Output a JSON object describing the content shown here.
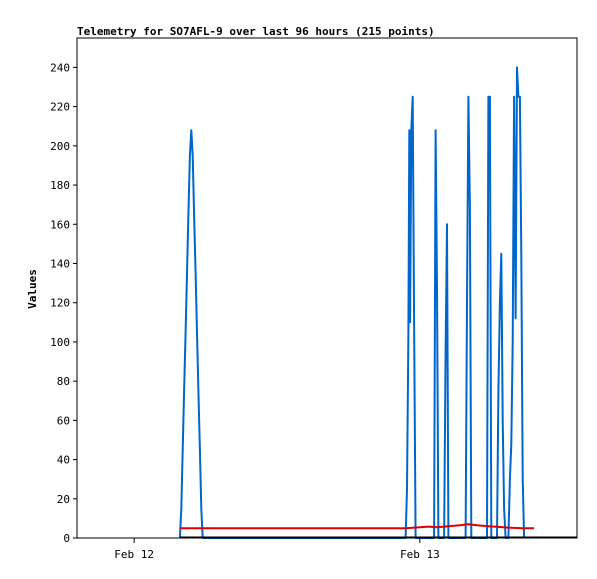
{
  "chart_data": {
    "type": "line",
    "title": "Telemetry for SO7AFL-9 over last 96 hours (215 points)",
    "ylabel": "Values",
    "xlabel": "",
    "ylim": [
      0,
      255
    ],
    "xlim": [
      -0.2,
      1.55
    ],
    "yticks": [
      0,
      20,
      40,
      60,
      80,
      100,
      120,
      140,
      160,
      180,
      200,
      220,
      240
    ],
    "xticks": [
      {
        "label": "Feb 12",
        "value": 0.0
      },
      {
        "label": "Feb 13",
        "value": 1.0
      }
    ],
    "grid": false,
    "legend": "none",
    "series": [
      {
        "color": "#0066cc",
        "points": [
          [
            0.16,
            0
          ],
          [
            0.165,
            15
          ],
          [
            0.17,
            45
          ],
          [
            0.175,
            75
          ],
          [
            0.18,
            105
          ],
          [
            0.185,
            135
          ],
          [
            0.19,
            165
          ],
          [
            0.195,
            195
          ],
          [
            0.2,
            208
          ],
          [
            0.205,
            195
          ],
          [
            0.21,
            165
          ],
          [
            0.215,
            135
          ],
          [
            0.22,
            105
          ],
          [
            0.225,
            75
          ],
          [
            0.23,
            45
          ],
          [
            0.235,
            15
          ],
          [
            0.24,
            0
          ],
          [
            0.95,
            0
          ],
          [
            0.955,
            25
          ],
          [
            0.96,
            105
          ],
          [
            0.963,
            208
          ],
          [
            0.966,
            110
          ],
          [
            0.97,
            208
          ],
          [
            0.975,
            225
          ],
          [
            0.98,
            110
          ],
          [
            0.985,
            0
          ],
          [
            1.05,
            0
          ],
          [
            1.055,
            208
          ],
          [
            1.06,
            128
          ],
          [
            1.065,
            0
          ],
          [
            1.085,
            0
          ],
          [
            1.09,
            95
          ],
          [
            1.095,
            160
          ],
          [
            1.1,
            0
          ],
          [
            1.16,
            0
          ],
          [
            1.165,
            120
          ],
          [
            1.17,
            225
          ],
          [
            1.175,
            168
          ],
          [
            1.18,
            0
          ],
          [
            1.235,
            0
          ],
          [
            1.24,
            225
          ],
          [
            1.245,
            225
          ],
          [
            1.25,
            0
          ],
          [
            1.27,
            0
          ],
          [
            1.275,
            75
          ],
          [
            1.28,
            120
          ],
          [
            1.285,
            145
          ],
          [
            1.29,
            60
          ],
          [
            1.295,
            15
          ],
          [
            1.3,
            0
          ],
          [
            1.31,
            0
          ],
          [
            1.315,
            30
          ],
          [
            1.32,
            48
          ],
          [
            1.325,
            100
          ],
          [
            1.33,
            225
          ],
          [
            1.335,
            112
          ],
          [
            1.34,
            240
          ],
          [
            1.345,
            225
          ],
          [
            1.35,
            225
          ],
          [
            1.355,
            145
          ],
          [
            1.36,
            30
          ],
          [
            1.365,
            0
          ]
        ]
      },
      {
        "color": "#dd0000",
        "points": [
          [
            0.16,
            5
          ],
          [
            0.4,
            5
          ],
          [
            0.7,
            5
          ],
          [
            0.95,
            5
          ],
          [
            1.0,
            5.5
          ],
          [
            1.03,
            5.8
          ],
          [
            1.06,
            5.5
          ],
          [
            1.1,
            6
          ],
          [
            1.14,
            6.5
          ],
          [
            1.17,
            7
          ],
          [
            1.2,
            6.5
          ],
          [
            1.24,
            6
          ],
          [
            1.28,
            5.6
          ],
          [
            1.32,
            5.2
          ],
          [
            1.36,
            5
          ],
          [
            1.4,
            5
          ]
        ]
      }
    ]
  }
}
